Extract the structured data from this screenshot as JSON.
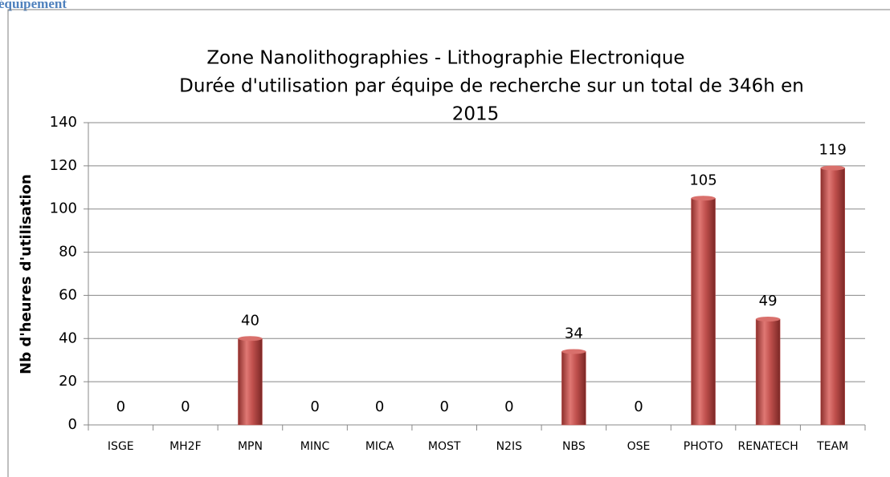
{
  "page_heading": "équipement",
  "chart_data": {
    "type": "bar",
    "title": [
      "Zone Nanolithographies -  Lithographie Electronique",
      "Durée d'utilisation par équipe de recherche sur un total de 346h en",
      "2015"
    ],
    "y_label": "Nb d'heures d'utilisation",
    "categories": [
      "ISGE",
      "MH2F",
      "MPN",
      "MINC",
      "MICA",
      "MOST",
      "N2IS",
      "NBS",
      "OSE",
      "PHOTO",
      "RENATECH",
      "TEAM"
    ],
    "values": [
      0,
      0,
      40,
      0,
      0,
      0,
      0,
      34,
      0,
      105,
      49,
      119
    ],
    "color": "#c0504d",
    "ylim": [
      0,
      140
    ],
    "yticks": [
      0,
      20,
      40,
      60,
      80,
      100,
      120,
      140
    ],
    "grid": true
  }
}
